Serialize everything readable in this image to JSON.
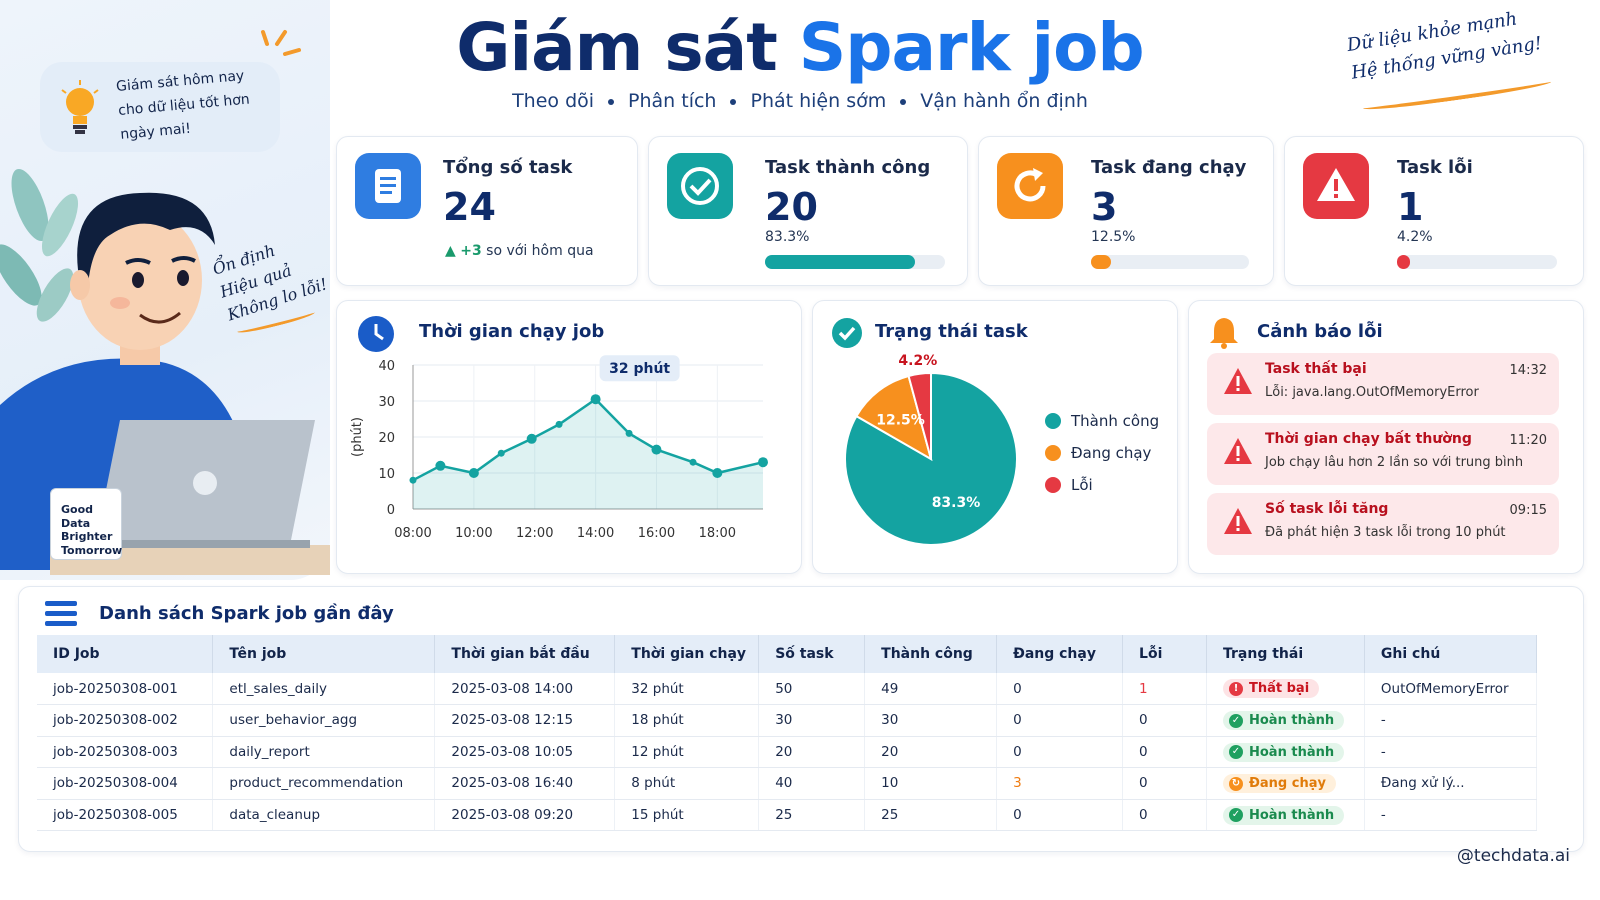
{
  "header": {
    "title_main": "Giám sát",
    "title_accent": "Spark job",
    "subtitle_items": [
      "Theo dõi",
      "Phân tích",
      "Phát hiện sớm",
      "Vận hành ổn định"
    ],
    "slogan_line1": "Dữ liệu khỏe mạnh",
    "slogan_line2": "Hệ thống vững vàng!"
  },
  "illustration": {
    "bubble_text_1": "Giám sát hôm nay",
    "bubble_text_2": "cho dữ liệu tốt hơn",
    "bubble_text_3": "ngày mai!",
    "note_1": "Ổn định",
    "note_2": "Hiệu quả",
    "note_3": "Không lo lỗi!",
    "mug_1": "Good",
    "mug_2": "Data",
    "mug_3": "Brighter",
    "mug_4": "Tomorrow"
  },
  "kpis": [
    {
      "title": "Tổng số task",
      "value": "24",
      "delta": "+3",
      "delta_text": "so với hôm qua",
      "color": "#2f7de1",
      "icon": "document-icon"
    },
    {
      "title": "Task thành công",
      "value": "20",
      "percent_text": "83.3%",
      "percent": 83.3,
      "color": "#14a3a1",
      "icon": "check-icon"
    },
    {
      "title": "Task đang chạy",
      "value": "3",
      "percent_text": "12.5%",
      "percent": 12.5,
      "color": "#f7901e",
      "icon": "refresh-icon"
    },
    {
      "title": "Task lỗi",
      "value": "1",
      "percent_text": "4.2%",
      "percent": 4.2,
      "color": "#e53942",
      "icon": "warning-icon"
    }
  ],
  "runtime_panel": {
    "title": "Thời gian chạy job",
    "tooltip": "32 phút"
  },
  "status_panel": {
    "title": "Trạng thái task",
    "legend": [
      {
        "label": "Thành công",
        "color": "#14a3a1"
      },
      {
        "label": "Đang chạy",
        "color": "#f7901e"
      },
      {
        "label": "Lỗi",
        "color": "#e53942"
      }
    ]
  },
  "alerts_panel": {
    "title": "Cảnh báo lỗi",
    "items": [
      {
        "title": "Task thất bại",
        "time": "14:32",
        "desc": "Lỗi: java.lang.OutOfMemoryError"
      },
      {
        "title": "Thời gian chạy bất thường",
        "time": "11:20",
        "desc": "Job chạy lâu hơn 2 lần so với trung bình"
      },
      {
        "title": "Số task lỗi tăng",
        "time": "09:15",
        "desc": "Đã phát hiện 3 task lỗi trong 10 phút"
      }
    ]
  },
  "chart_data": [
    {
      "type": "line",
      "title": "Thời gian chạy job",
      "ylabel": "(phút)",
      "xlabel": "",
      "x_ticks": [
        "08:00",
        "10:00",
        "12:00",
        "14:00",
        "16:00",
        "18:00"
      ],
      "y_ticks": [
        0,
        10,
        20,
        30,
        40
      ],
      "ylim": [
        0,
        40
      ],
      "xlim_hours": [
        8,
        19.5
      ],
      "series": [
        {
          "x": [
            8,
            8.9,
            10,
            10.9,
            11.9,
            12.8,
            14,
            15.1,
            16,
            17.2,
            18,
            19.5
          ],
          "y": [
            8,
            12,
            10,
            15.5,
            19.5,
            23.5,
            30.5,
            21,
            16.5,
            13,
            10,
            13
          ]
        }
      ],
      "annotation": "32 phút"
    },
    {
      "type": "pie",
      "title": "Trạng thái task",
      "slices": [
        {
          "label": "Thành công",
          "value": 83.3,
          "text": "83.3%",
          "color": "#14a3a1"
        },
        {
          "label": "Đang chạy",
          "value": 12.5,
          "text": "12.5%",
          "color": "#f7901e"
        },
        {
          "label": "Lỗi",
          "value": 4.2,
          "text": "4.2%",
          "color": "#e53942"
        }
      ]
    }
  ],
  "table": {
    "title": "Danh sách Spark job gần đây",
    "columns": [
      "ID Job",
      "Tên job",
      "Thời gian bắt đầu",
      "Thời gian chạy",
      "Số task",
      "Thành công",
      "Đang chạy",
      "Lỗi",
      "Trạng thái",
      "Ghi chú"
    ],
    "rows": [
      {
        "id": "job-20250308-001",
        "name": "etl_sales_daily",
        "start": "2025-03-08 14:00",
        "duration": "32 phút",
        "tasks": "50",
        "success": "49",
        "running": "0",
        "failed": "1",
        "status": "Thất bại",
        "status_kind": "fail",
        "note": "OutOfMemoryError"
      },
      {
        "id": "job-20250308-002",
        "name": "user_behavior_agg",
        "start": "2025-03-08 12:15",
        "duration": "18 phút",
        "tasks": "30",
        "success": "30",
        "running": "0",
        "failed": "0",
        "status": "Hoàn thành",
        "status_kind": "done",
        "note": "-"
      },
      {
        "id": "job-20250308-003",
        "name": "daily_report",
        "start": "2025-03-08 10:05",
        "duration": "12 phút",
        "tasks": "20",
        "success": "20",
        "running": "0",
        "failed": "0",
        "status": "Hoàn thành",
        "status_kind": "done",
        "note": "-"
      },
      {
        "id": "job-20250308-004",
        "name": "product_recommendation",
        "start": "2025-03-08 16:40",
        "duration": "8 phút",
        "tasks": "40",
        "success": "10",
        "running": "3",
        "failed": "0",
        "status": "Đang chạy",
        "status_kind": "running",
        "note": "Đang xử lý..."
      },
      {
        "id": "job-20250308-005",
        "name": "data_cleanup",
        "start": "2025-03-08 09:20",
        "duration": "15 phút",
        "tasks": "25",
        "success": "25",
        "running": "0",
        "failed": "0",
        "status": "Hoàn thành",
        "status_kind": "done",
        "note": "-"
      }
    ]
  },
  "footer": {
    "handle": "@techdata.ai"
  }
}
